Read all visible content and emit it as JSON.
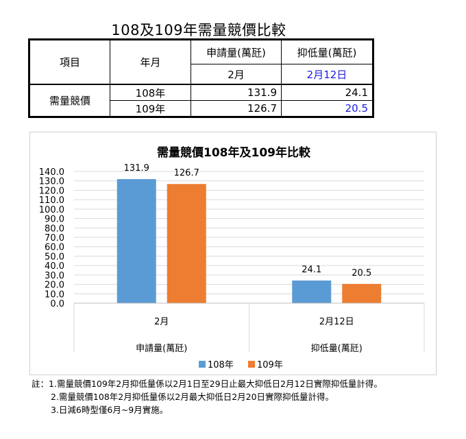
{
  "title": "108及109年需量競價比較",
  "table": {
    "header_item": "項目",
    "header_yearmonth": "年月",
    "col1_title": "申請量(萬瓩)",
    "col2_title": "抑低量(萬瓩)",
    "col1_sub": "2月",
    "col2_sub": "2月12日",
    "row_group_label": "需量競價",
    "rows": [
      {
        "year": "108年",
        "apply": "131.9",
        "reduce": "24.1"
      },
      {
        "year": "109年",
        "apply": "126.7",
        "reduce": "20.5"
      }
    ],
    "highlight_color": "#1a1ae6"
  },
  "chart_data": {
    "type": "bar",
    "title": "需量競價108年及109年比較",
    "categories": [
      {
        "label": "2月",
        "group": "申請量(萬瓩)"
      },
      {
        "label": "2月12日",
        "group": "抑低量(萬瓩)"
      }
    ],
    "series": [
      {
        "name": "108年",
        "values": [
          131.9,
          24.1
        ],
        "color": "#5b9bd5"
      },
      {
        "name": "109年",
        "values": [
          126.7,
          20.5
        ],
        "color": "#ed7d31"
      }
    ],
    "data_labels": [
      [
        "131.9",
        "24.1"
      ],
      [
        "126.7",
        "20.5"
      ]
    ],
    "ylim": [
      0,
      140
    ],
    "yticks": [
      "0.0",
      "10.0",
      "20.0",
      "30.0",
      "40.0",
      "50.0",
      "60.0",
      "70.0",
      "80.0",
      "90.0",
      "100.0",
      "110.0",
      "120.0",
      "130.0",
      "140.0"
    ],
    "ytick_step": 10,
    "grid": true,
    "legend_position": "bottom"
  },
  "notes": {
    "prefix": "註：",
    "lines": [
      "1.需量競價109年2月抑低量係以2月1日至29日止最大抑低日2月12日實際抑低量計得。",
      "2.需量競價108年2月抑低量係以2月最大抑低日2月20日實際抑低量計得。",
      "3.日減6時型僅6月~9月實施。"
    ]
  }
}
